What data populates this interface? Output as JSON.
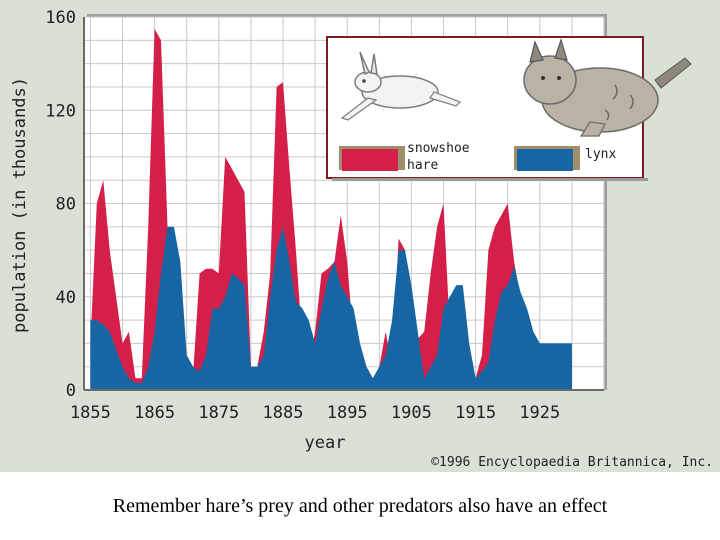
{
  "chart_data": {
    "type": "area",
    "title": "",
    "xlabel": "year",
    "ylabel": "population (in thousands)",
    "xlim": [
      1854,
      1935
    ],
    "ylim": [
      0,
      160
    ],
    "x_ticks": [
      1855,
      1865,
      1875,
      1885,
      1895,
      1905,
      1915,
      1925
    ],
    "y_ticks": [
      0,
      40,
      80,
      120,
      160
    ],
    "grid": true,
    "legend_position": "top-right",
    "series": [
      {
        "name": "snowshoe hare",
        "color": "#d41f49",
        "x": [
          1855,
          1856,
          1857,
          1858,
          1860,
          1861,
          1862,
          1863,
          1864,
          1865,
          1866,
          1867,
          1868,
          1869,
          1870,
          1871,
          1872,
          1873,
          1874,
          1875,
          1876,
          1877,
          1878,
          1879,
          1880,
          1881,
          1882,
          1883,
          1884,
          1885,
          1886,
          1887,
          1888,
          1889,
          1890,
          1891,
          1892,
          1893,
          1894,
          1895,
          1896,
          1897,
          1898,
          1899,
          1900,
          1901,
          1902,
          1903,
          1904,
          1905,
          1906,
          1907,
          1908,
          1909,
          1910,
          1911,
          1912,
          1913,
          1914,
          1915,
          1916,
          1917,
          1918,
          1919,
          1920,
          1921,
          1922,
          1923,
          1924,
          1925,
          1926,
          1927,
          1928,
          1929,
          1930
        ],
        "values": [
          20,
          80,
          90,
          60,
          20,
          25,
          5,
          5,
          70,
          155,
          150,
          70,
          10,
          8,
          5,
          7,
          50,
          52,
          52,
          50,
          100,
          95,
          90,
          85,
          10,
          10,
          25,
          50,
          130,
          132,
          95,
          60,
          20,
          10,
          25,
          50,
          52,
          55,
          75,
          55,
          20,
          15,
          5,
          5,
          10,
          25,
          10,
          65,
          60,
          20,
          22,
          25,
          50,
          70,
          80,
          25,
          20,
          5,
          5,
          5,
          15,
          60,
          70,
          75,
          80,
          55,
          40,
          30,
          20,
          20,
          15,
          15,
          15,
          15,
          15
        ]
      },
      {
        "name": "lynx",
        "color": "#1766a3",
        "x": [
          1855,
          1856,
          1857,
          1858,
          1860,
          1861,
          1862,
          1863,
          1864,
          1865,
          1866,
          1867,
          1868,
          1869,
          1870,
          1871,
          1872,
          1873,
          1874,
          1875,
          1876,
          1877,
          1878,
          1879,
          1880,
          1881,
          1882,
          1883,
          1884,
          1885,
          1886,
          1887,
          1888,
          1889,
          1890,
          1891,
          1892,
          1893,
          1894,
          1895,
          1896,
          1897,
          1898,
          1899,
          1900,
          1901,
          1902,
          1903,
          1904,
          1905,
          1906,
          1907,
          1908,
          1909,
          1910,
          1911,
          1912,
          1913,
          1914,
          1915,
          1916,
          1917,
          1918,
          1919,
          1920,
          1921,
          1922,
          1923,
          1924,
          1925,
          1926,
          1927,
          1928,
          1929,
          1930
        ],
        "values": [
          30,
          30,
          28,
          25,
          10,
          5,
          3,
          3,
          10,
          25,
          50,
          70,
          70,
          55,
          15,
          10,
          8,
          15,
          35,
          35,
          40,
          50,
          48,
          45,
          10,
          10,
          15,
          40,
          60,
          70,
          55,
          38,
          35,
          30,
          20,
          35,
          48,
          55,
          45,
          40,
          35,
          20,
          10,
          5,
          10,
          15,
          30,
          60,
          60,
          45,
          25,
          5,
          10,
          15,
          35,
          40,
          45,
          45,
          20,
          5,
          8,
          12,
          30,
          42,
          45,
          53,
          42,
          35,
          25,
          20,
          20,
          20,
          20,
          20,
          20
        ]
      }
    ],
    "legend": {
      "hare_label_line1": "snowshoe",
      "hare_label_line2": "hare",
      "lynx_label": "lynx",
      "hare_icon": "hare-icon",
      "lynx_icon": "lynx-icon"
    },
    "copyright": "©1996 Encyclopaedia Britannica, Inc."
  },
  "caption": "Remember hare’s prey and other predators also have an effect"
}
